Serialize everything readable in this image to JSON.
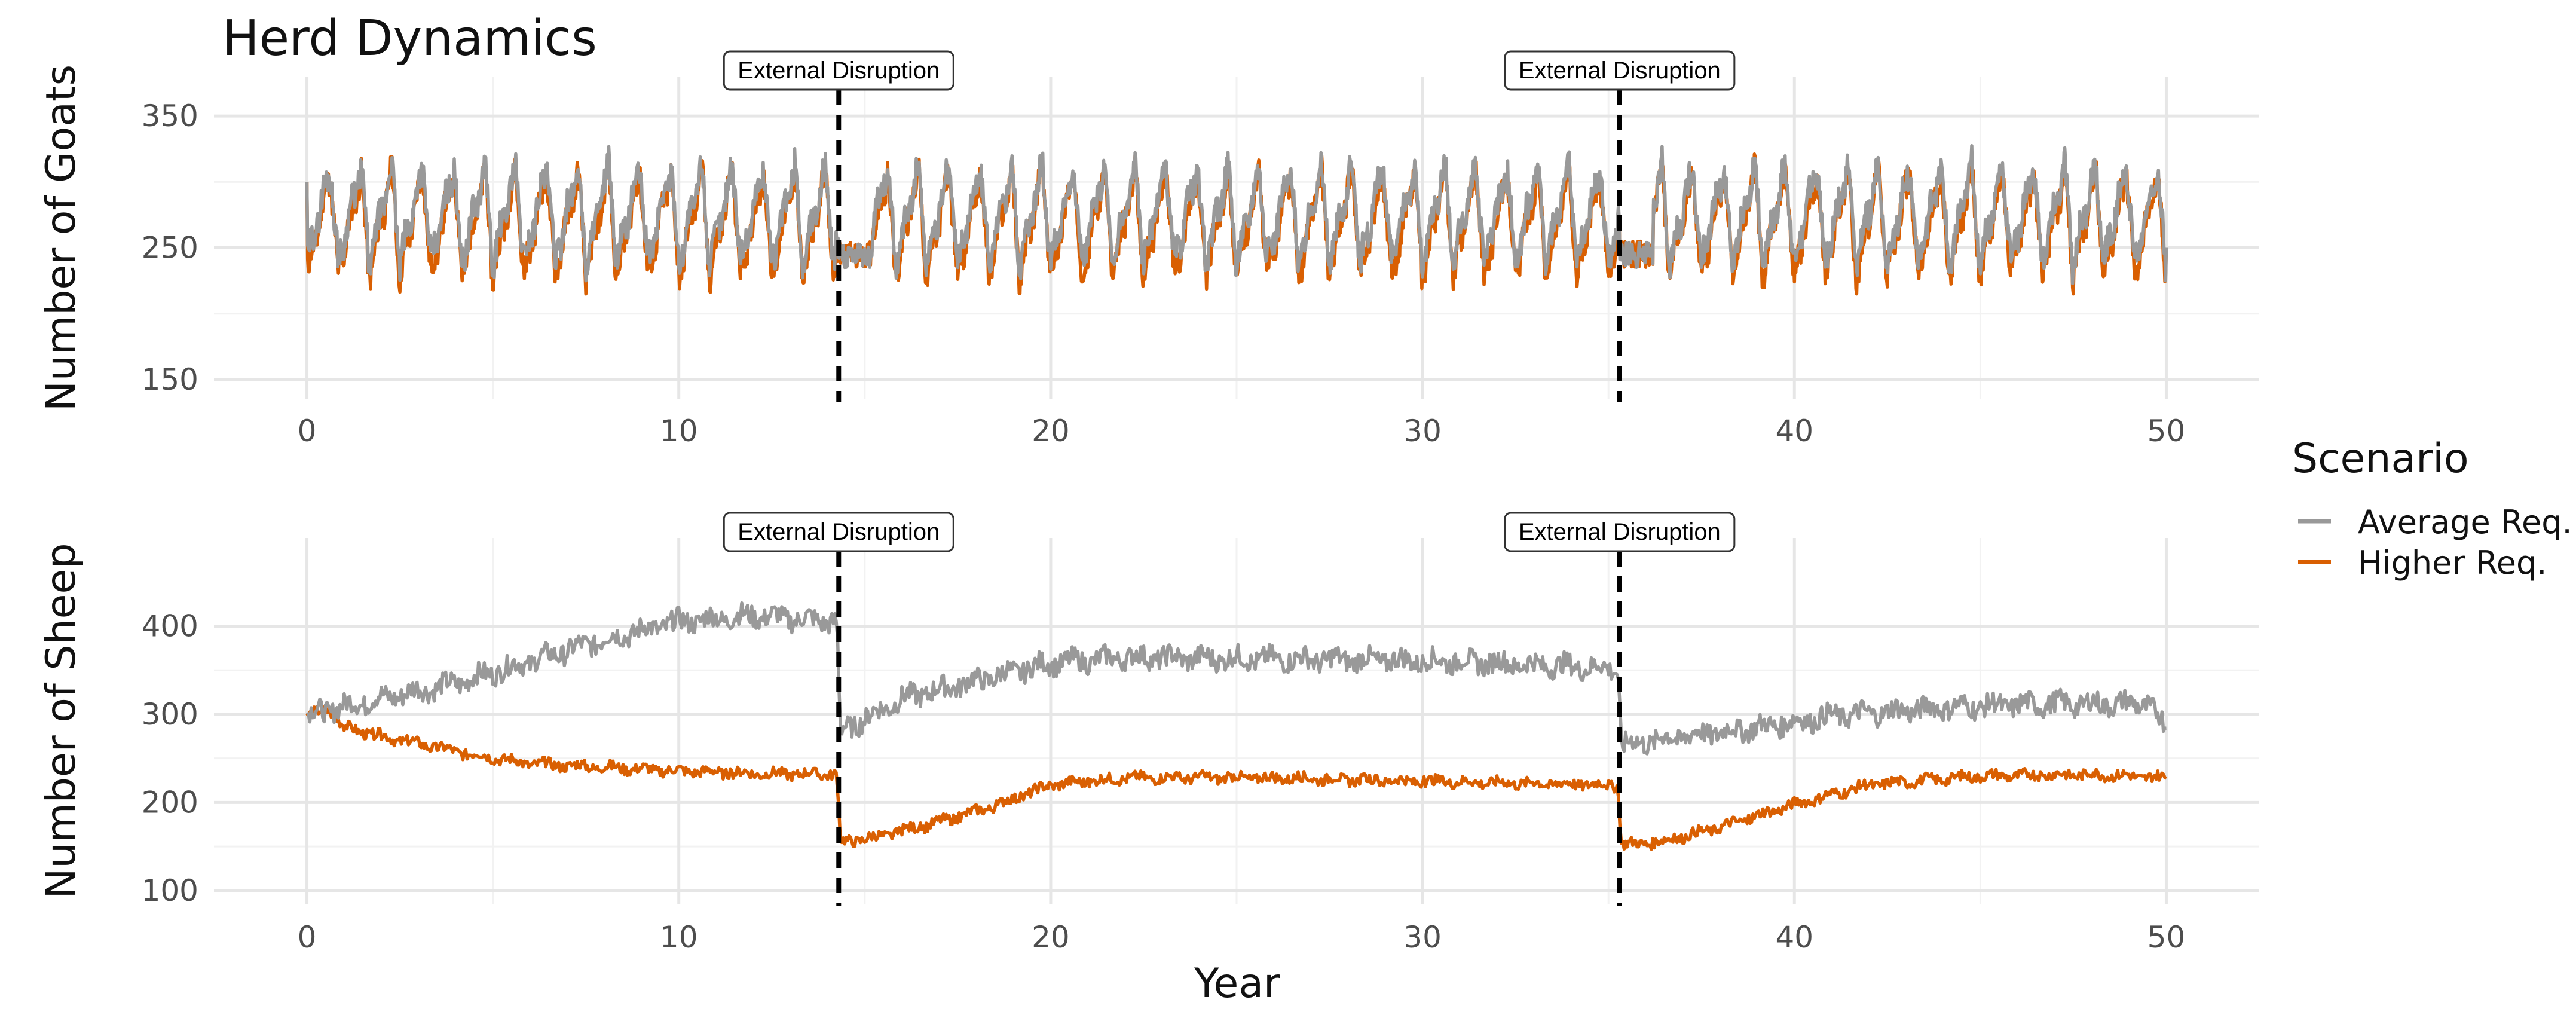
{
  "title": "Herd Dynamics",
  "xlabel": "Year",
  "legend": {
    "title": "Scenario",
    "entries": [
      {
        "label": "Average Req.",
        "color": "#999999"
      },
      {
        "label": "Higher Req.",
        "color": "#D95F02"
      }
    ]
  },
  "colors": {
    "average": "#999999",
    "higher": "#D95F02",
    "grid": "#e6e6e6",
    "disruption": "#000000"
  },
  "chart_data": [
    {
      "type": "line",
      "ylabel": "Number of Goats",
      "xlim": [
        -2.5,
        52.5
      ],
      "ylim": [
        135,
        380
      ],
      "xticks": [
        0,
        10,
        20,
        30,
        40,
        50
      ],
      "yticks": [
        150,
        250,
        350
      ],
      "disruptions": [
        {
          "x": 14.3,
          "label": "External Disruption"
        },
        {
          "x": 35.3,
          "label": "External Disruption"
        }
      ],
      "series_model": {
        "Average Req.": {
          "base": 275,
          "amplitude": 37,
          "period_years": 0.833,
          "range": [
            215,
            340
          ],
          "start": 300,
          "end": 250
        },
        "Higher Req.": {
          "base": 268,
          "amplitude": 40,
          "period_years": 0.833,
          "range": [
            215,
            335
          ],
          "start": 300,
          "end": 250
        }
      }
    },
    {
      "type": "line",
      "ylabel": "Number of Sheep",
      "xlim": [
        -2.5,
        52.5
      ],
      "ylim": [
        85,
        500
      ],
      "xticks": [
        0,
        10,
        20,
        30,
        40,
        50
      ],
      "yticks": [
        100,
        200,
        300,
        400
      ],
      "disruptions": [
        {
          "x": 14.3,
          "label": "External Disruption"
        },
        {
          "x": 35.3,
          "label": "External Disruption"
        }
      ],
      "series_model": {
        "Average Req.": {
          "trend": [
            [
              0,
              300
            ],
            [
              2,
              318
            ],
            [
              4,
              335
            ],
            [
              6,
              360
            ],
            [
              8,
              385
            ],
            [
              10,
              405
            ],
            [
              12,
              412
            ],
            [
              14.25,
              405
            ],
            [
              14.35,
              280
            ],
            [
              16,
              318
            ],
            [
              18,
              338
            ],
            [
              20,
              358
            ],
            [
              22,
              365
            ],
            [
              25,
              363
            ],
            [
              28,
              362
            ],
            [
              31,
              360
            ],
            [
              35.25,
              352
            ],
            [
              35.35,
              265
            ],
            [
              37,
              275
            ],
            [
              39,
              285
            ],
            [
              41,
              298
            ],
            [
              44,
              308
            ],
            [
              47,
              312
            ],
            [
              49.5,
              312
            ],
            [
              50,
              285
            ]
          ],
          "noise_amplitude": 12
        },
        "Higher Req.": {
          "trend": [
            [
              0,
              298
            ],
            [
              0.6,
              306
            ],
            [
              1,
              285
            ],
            [
              2,
              275
            ],
            [
              4,
              258
            ],
            [
              6,
              244
            ],
            [
              8,
              240
            ],
            [
              10,
              236
            ],
            [
              12,
              233
            ],
            [
              14.25,
              232
            ],
            [
              14.35,
              155
            ],
            [
              15.5,
              162
            ],
            [
              17,
              178
            ],
            [
              18.5,
              196
            ],
            [
              20,
              220
            ],
            [
              22,
              228
            ],
            [
              26,
              228
            ],
            [
              30,
              224
            ],
            [
              35.25,
              220
            ],
            [
              35.35,
              152
            ],
            [
              36.5,
              156
            ],
            [
              38,
              172
            ],
            [
              40,
              198
            ],
            [
              42,
              220
            ],
            [
              45,
              230
            ],
            [
              48,
              232
            ],
            [
              50,
              228
            ]
          ],
          "noise_amplitude": 6
        }
      }
    }
  ]
}
